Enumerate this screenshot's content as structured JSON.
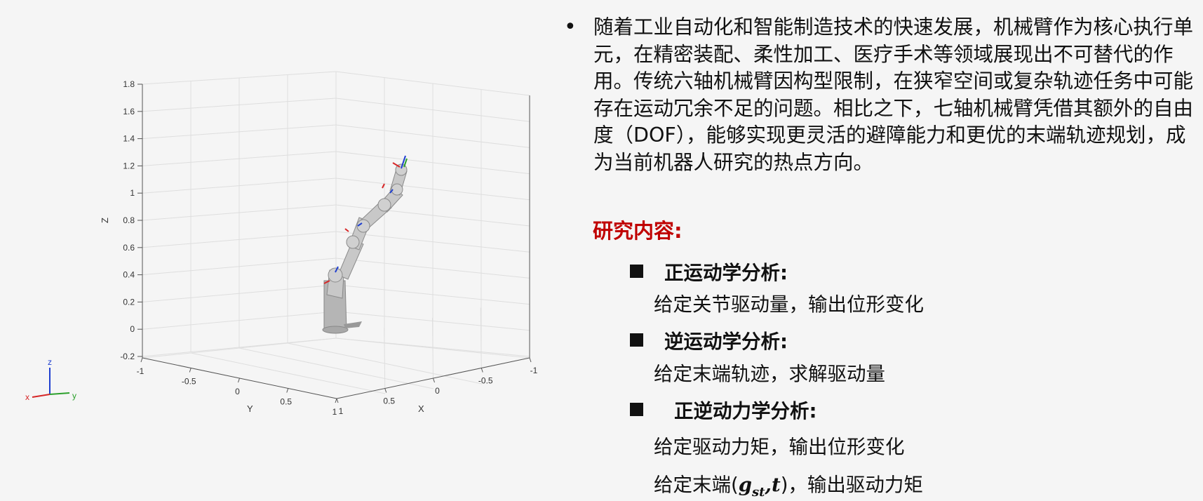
{
  "plot": {
    "zlabel": "Z",
    "ylabel": "Y",
    "xlabel": "X",
    "z_ticks": [
      "1.8",
      "1.6",
      "1.4",
      "1.2",
      "1",
      "0.8",
      "0.6",
      "0.4",
      "0.2",
      "0",
      "-0.2"
    ],
    "y_ticks": [
      "-1",
      "-0.5",
      "0",
      "0.5",
      "1"
    ],
    "x_ticks": [
      "1",
      "0.5",
      "0",
      "-0.5",
      "-1"
    ],
    "triad": {
      "z": "z",
      "x": "x",
      "y": "y"
    },
    "colors": {
      "triad_x": "#d62728",
      "triad_y": "#2ca02c",
      "triad_z": "#1f3fd0",
      "robot": "#b9b9b9"
    }
  },
  "text": {
    "bullet": "•",
    "intro": "随着工业自动化和智能制造技术的快速发展，机械臂作为核心执行单元，在精密装配、柔性加工、医疗手术等领域展现出不可替代的作用。传统六轴机械臂因构型限制，在狭窄空间或复杂轨迹任务中可能存在运动冗余不足的问题。相比之下，七轴机械臂凭借其额外的自由度（DOF），能够实现更灵活的避障能力和更优的末端轨迹规划，成为当前机器人研究的热点方向。",
    "section_title": "研究内容:",
    "items": [
      {
        "title": "正运动学分析:",
        "desc": "给定关节驱动量，输出位形变化"
      },
      {
        "title": "逆运动学分析:",
        "desc": "给定末端轨迹，求解驱动量"
      },
      {
        "title": "正逆动力学分析:",
        "desc1": "给定驱动力矩，输出位形变化",
        "desc2_pre": "给定末端(",
        "desc2_g": "g",
        "desc2_sub": "st",
        "desc2_mid": ",",
        "desc2_t": "t",
        "desc2_post": ")，输出驱动力矩"
      }
    ],
    "accent_color": "#c00000"
  }
}
